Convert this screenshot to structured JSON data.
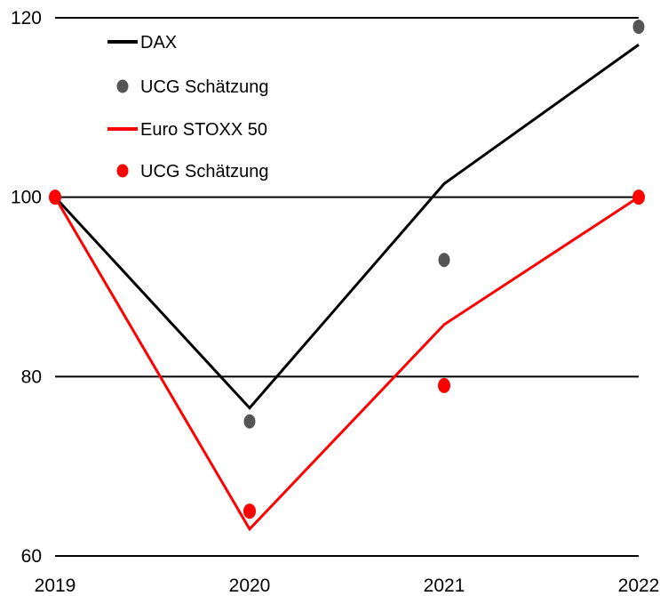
{
  "chart_data": {
    "type": "line",
    "x": [
      "2019",
      "2020",
      "2021",
      "2022"
    ],
    "ylim": [
      60,
      120
    ],
    "yticks": [
      60,
      80,
      100,
      120
    ],
    "grid": "horizontal",
    "legend_position": "top-left",
    "series": [
      {
        "name": "DAX",
        "kind": "line",
        "color": "#000000",
        "values": [
          100,
          76.5,
          101.5,
          117
        ]
      },
      {
        "name": "UCG Schätzung",
        "kind": "scatter",
        "color": "#555555",
        "values": [
          100,
          75,
          93,
          119
        ]
      },
      {
        "name": "Euro STOXX 50",
        "kind": "line",
        "color": "#ff0000",
        "values": [
          100,
          63,
          85.8,
          100
        ]
      },
      {
        "name": "UCG Schätzung",
        "kind": "scatter",
        "color": "#ff0000",
        "values": [
          100,
          65,
          79,
          100
        ]
      }
    ]
  }
}
